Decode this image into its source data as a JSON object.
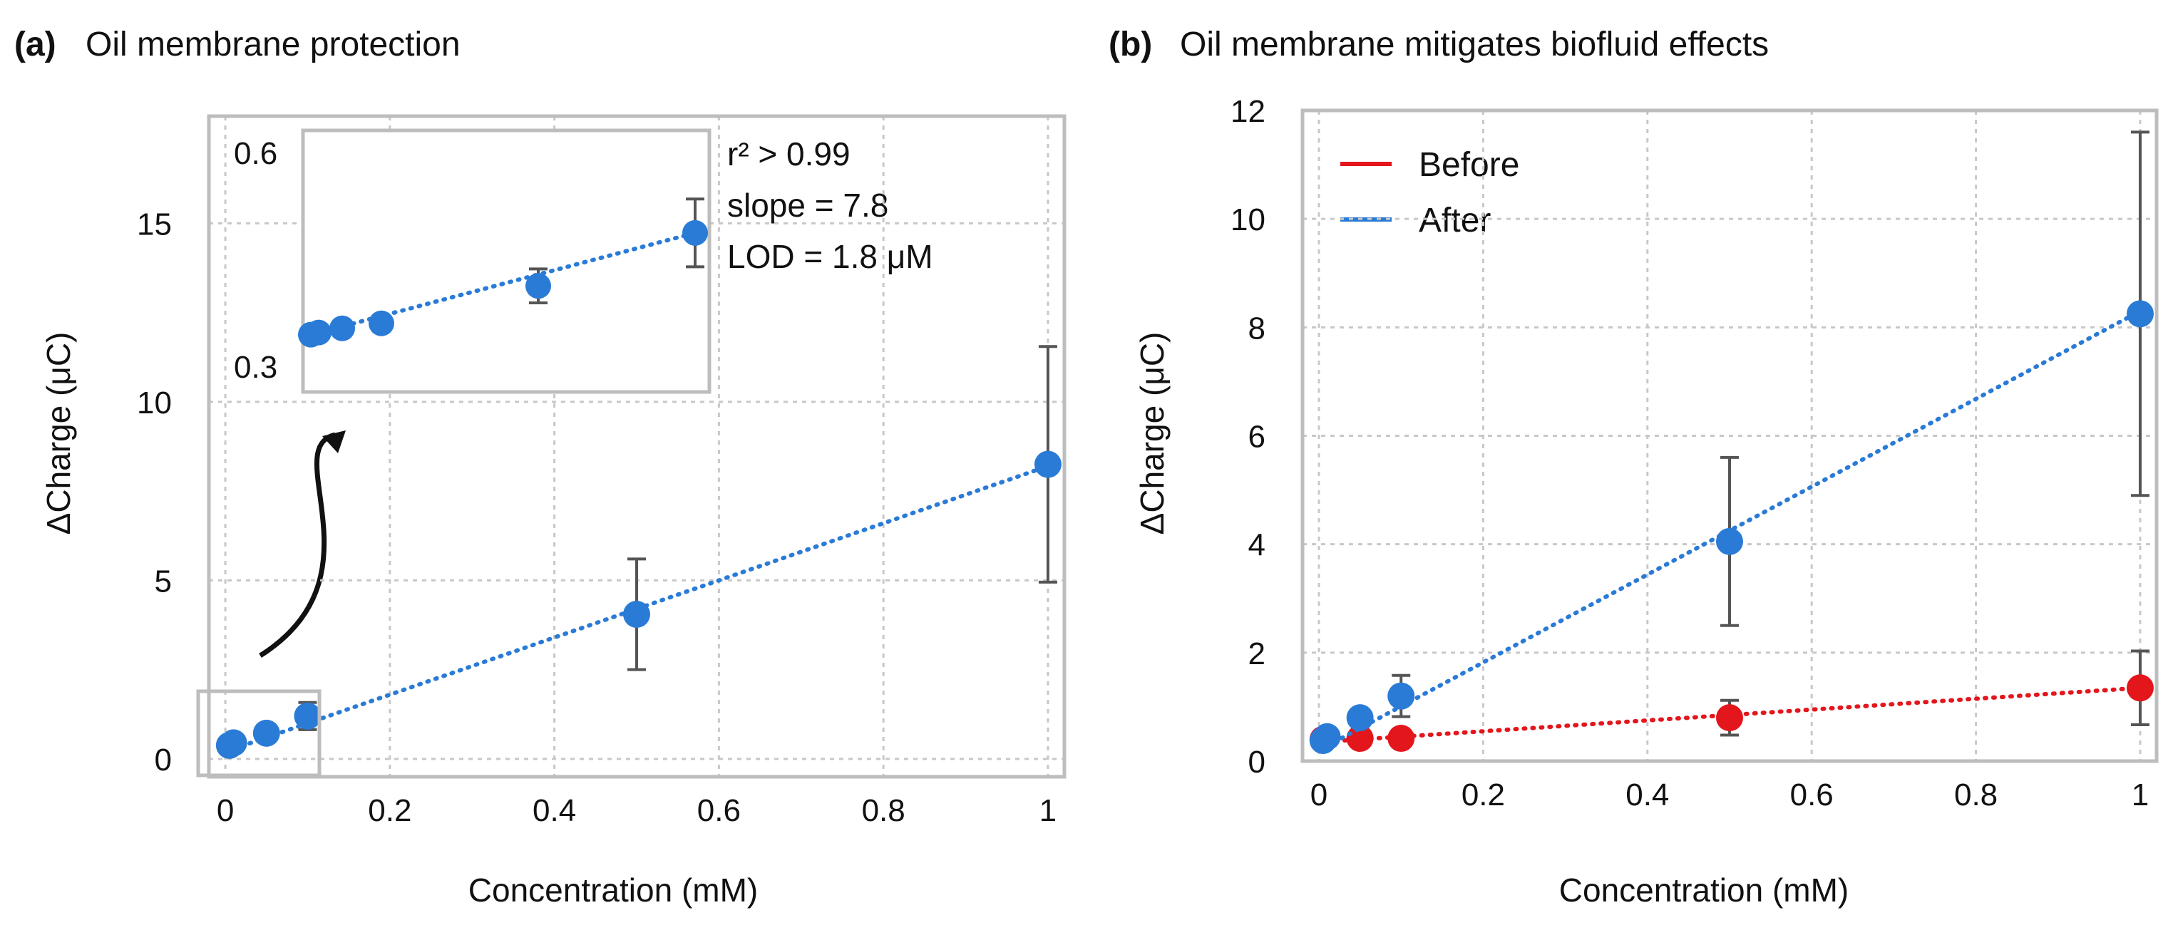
{
  "chart_data": [
    {
      "id": "a",
      "type": "scatter",
      "panel_letter": "(a)",
      "title": "Oil membrane protection",
      "xlabel": "Concentration (mM)",
      "ylabel": "ΔCharge (μC)",
      "xlim": [
        -0.02,
        1.02
      ],
      "ylim": [
        -0.5,
        18
      ],
      "xticks": [
        0,
        0.2,
        0.4,
        0.6,
        0.8,
        1
      ],
      "xtick_labels": [
        "0",
        "0.2",
        "0.4",
        "0.6",
        "0.8",
        "1"
      ],
      "yticks": [
        0,
        5,
        10,
        15
      ],
      "ytick_labels": [
        "0",
        "5",
        "10",
        "15"
      ],
      "grid": true,
      "series": [
        {
          "name": "After",
          "color": "#2a7bd6",
          "x": [
            0.005,
            0.01,
            0.05,
            0.1,
            0.5,
            1.0
          ],
          "y": [
            0.38,
            0.45,
            0.72,
            1.2,
            4.05,
            8.25
          ],
          "err": [
            0.02,
            0.02,
            0.05,
            0.38,
            1.55,
            3.3
          ],
          "fit": {
            "x": [
              0,
              1.0
            ],
            "y": [
              0.2,
              8.2
            ]
          }
        }
      ],
      "inset": {
        "ytick_labels": [
          "0.6",
          "0.3"
        ],
        "ylim": [
          0.28,
          0.65
        ],
        "x": [
          0.001,
          0.002,
          0.005,
          0.01,
          0.03,
          0.05
        ],
        "y": [
          0.361,
          0.364,
          0.37,
          0.377,
          0.43,
          0.505
        ],
        "err": [
          0.003,
          0.003,
          0.003,
          0.004,
          0.024,
          0.048
        ],
        "fit": {
          "x": [
            0,
            0.05
          ],
          "y": [
            0.358,
            0.505
          ]
        },
        "annotations": [
          "r² > 0.99",
          "slope = 7.8",
          "LOD = 1.8 μM"
        ]
      }
    },
    {
      "id": "b",
      "type": "scatter",
      "panel_letter": "(b)",
      "title": "Oil membrane mitigates biofluid effects",
      "xlabel": "Concentration (mM)",
      "ylabel": "ΔCharge (μC)",
      "xlim": [
        -0.02,
        1.02
      ],
      "ylim": [
        0,
        12
      ],
      "xticks": [
        0,
        0.2,
        0.4,
        0.6,
        0.8,
        1
      ],
      "xtick_labels": [
        "0",
        "0.2",
        "0.4",
        "0.6",
        "0.8",
        "1"
      ],
      "yticks": [
        0,
        2,
        4,
        6,
        8,
        10,
        12
      ],
      "ytick_labels": [
        "0",
        "2",
        "4",
        "6",
        "8",
        "10",
        "12"
      ],
      "grid": true,
      "legend": "top-left",
      "series": [
        {
          "name": "Before",
          "color": "#e3161c",
          "x": [
            0.005,
            0.05,
            0.1,
            0.5,
            1.0
          ],
          "y": [
            0.4,
            0.42,
            0.42,
            0.8,
            1.35
          ],
          "err": [
            0,
            0,
            0,
            0.32,
            0.68
          ],
          "fit": {
            "x": [
              0,
              1.0
            ],
            "y": [
              0.35,
              1.35
            ]
          }
        },
        {
          "name": "After",
          "color": "#2a7bd6",
          "x": [
            0.005,
            0.01,
            0.05,
            0.1,
            0.5,
            1.0
          ],
          "y": [
            0.38,
            0.45,
            0.8,
            1.2,
            4.05,
            8.25
          ],
          "err": [
            0,
            0,
            0,
            0.38,
            1.55,
            3.35
          ],
          "fit": {
            "x": [
              0,
              1.0
            ],
            "y": [
              0.2,
              8.3
            ]
          }
        }
      ]
    }
  ]
}
